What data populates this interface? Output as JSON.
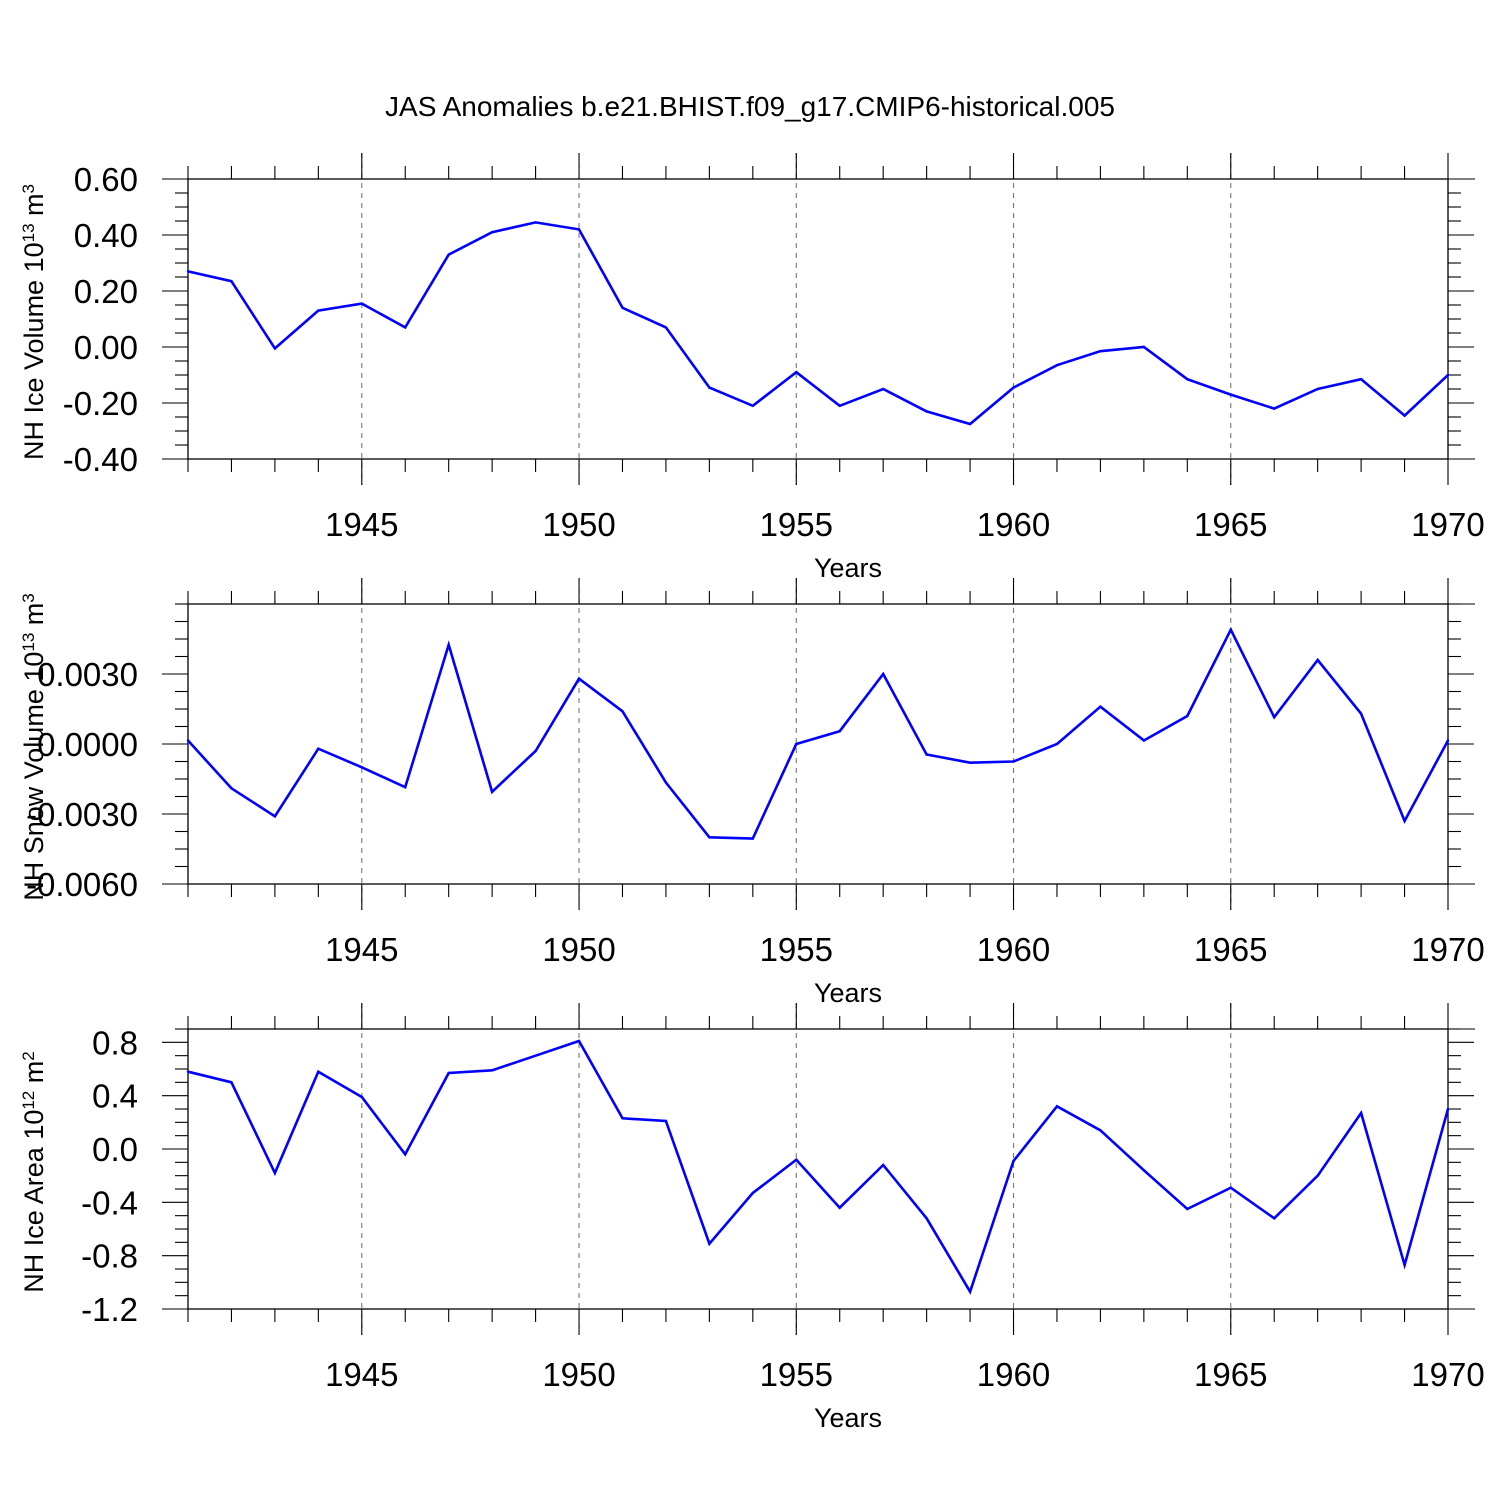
{
  "title": "JAS Anomalies b.e21.BHIST.f09_g17.CMIP6-historical.005",
  "colors": {
    "series": "#0000ff",
    "grid": "#777777",
    "axis": "#000000"
  },
  "chart_data": [
    {
      "type": "line",
      "ylabel": {
        "text": "NH Ice Volume 10",
        "exponent": "13",
        "unit": " m",
        "unit_exponent": "3"
      },
      "xlabel": "Years",
      "xlim": [
        1941,
        1970
      ],
      "ylim": [
        -0.4,
        0.6
      ],
      "yticks": [
        0.6,
        0.4,
        0.2,
        0.0,
        -0.2,
        -0.4
      ],
      "ytick_labels": [
        "0.60",
        "0.40",
        "0.20",
        "0.00",
        "-0.20",
        "-0.40"
      ],
      "xticks": [
        1945,
        1950,
        1955,
        1960,
        1965,
        1970
      ],
      "xtick_labels": [
        "1945",
        "1950",
        "1955",
        "1960",
        "1965",
        "1970"
      ],
      "grid_x": [
        1945,
        1950,
        1955,
        1960,
        1965
      ],
      "x": [
        1941,
        1942,
        1943,
        1944,
        1945,
        1946,
        1947,
        1948,
        1949,
        1950,
        1951,
        1952,
        1953,
        1954,
        1955,
        1956,
        1957,
        1958,
        1959,
        1960,
        1961,
        1962,
        1963,
        1964,
        1965,
        1966,
        1967,
        1968,
        1969,
        1970
      ],
      "values": [
        0.27,
        0.235,
        -0.005,
        0.13,
        0.155,
        0.07,
        0.33,
        0.41,
        0.445,
        0.42,
        0.14,
        0.07,
        -0.145,
        -0.21,
        -0.09,
        -0.21,
        -0.15,
        -0.23,
        -0.275,
        -0.145,
        -0.065,
        -0.015,
        0.0,
        -0.115,
        -0.17,
        -0.22,
        -0.15,
        -0.115,
        -0.245,
        -0.1
      ]
    },
    {
      "type": "line",
      "ylabel": {
        "text": "NH Snow Volume 10",
        "exponent": "13",
        "unit": " m",
        "unit_exponent": "3"
      },
      "xlabel": "Years",
      "xlim": [
        1941,
        1970
      ],
      "ylim": [
        -0.006,
        0.006
      ],
      "yticks": [
        0.003,
        0.0,
        -0.003,
        -0.006
      ],
      "ytick_labels": [
        "0.0030",
        "0.0000",
        "-0.0030",
        "-0.0060"
      ],
      "xticks": [
        1945,
        1950,
        1955,
        1960,
        1965,
        1970
      ],
      "xtick_labels": [
        "1945",
        "1950",
        "1955",
        "1960",
        "1965",
        "1970"
      ],
      "grid_x": [
        1945,
        1950,
        1955,
        1960,
        1965
      ],
      "x": [
        1941,
        1942,
        1943,
        1944,
        1945,
        1946,
        1947,
        1948,
        1949,
        1950,
        1951,
        1952,
        1953,
        1954,
        1955,
        1956,
        1957,
        1958,
        1959,
        1960,
        1961,
        1962,
        1963,
        1964,
        1965,
        1966,
        1967,
        1968,
        1969,
        1970
      ],
      "values": [
        0.00015,
        -0.0019,
        -0.0031,
        -0.0002,
        -0.001,
        -0.00185,
        0.00425,
        -0.00205,
        -0.0003,
        0.0028,
        0.0014,
        -0.00165,
        -0.004,
        -0.00405,
        0.0,
        0.00055,
        0.003,
        -0.00045,
        -0.0008,
        -0.00075,
        0.0,
        0.0016,
        0.00015,
        0.0012,
        0.0049,
        0.00115,
        0.0036,
        0.0013,
        -0.0033,
        0.00015
      ]
    },
    {
      "type": "line",
      "ylabel": {
        "text": "NH Ice Area 10",
        "exponent": "12",
        "unit": " m",
        "unit_exponent": "2"
      },
      "xlabel": "Years",
      "xlim": [
        1941,
        1970
      ],
      "ylim": [
        -1.2,
        0.9
      ],
      "yticks": [
        0.8,
        0.4,
        0.0,
        -0.4,
        -0.8,
        -1.2
      ],
      "ytick_labels": [
        "0.8",
        "0.4",
        "0.0",
        "-0.4",
        "-0.8",
        "-1.2"
      ],
      "xticks": [
        1945,
        1950,
        1955,
        1960,
        1965,
        1970
      ],
      "xtick_labels": [
        "1945",
        "1950",
        "1955",
        "1960",
        "1965",
        "1970"
      ],
      "grid_x": [
        1945,
        1950,
        1955,
        1960,
        1965
      ],
      "x": [
        1941,
        1942,
        1943,
        1944,
        1945,
        1946,
        1947,
        1948,
        1949,
        1950,
        1951,
        1952,
        1953,
        1954,
        1955,
        1956,
        1957,
        1958,
        1959,
        1960,
        1961,
        1962,
        1963,
        1964,
        1965,
        1966,
        1967,
        1968,
        1969,
        1970
      ],
      "values": [
        0.58,
        0.5,
        -0.18,
        0.58,
        0.39,
        -0.04,
        0.57,
        0.59,
        0.7,
        0.81,
        0.23,
        0.21,
        -0.71,
        -0.33,
        -0.08,
        -0.44,
        -0.12,
        -0.52,
        -1.07,
        -0.09,
        0.32,
        0.14,
        -0.16,
        -0.45,
        -0.29,
        -0.52,
        -0.2,
        0.27,
        -0.87,
        0.3
      ]
    }
  ]
}
